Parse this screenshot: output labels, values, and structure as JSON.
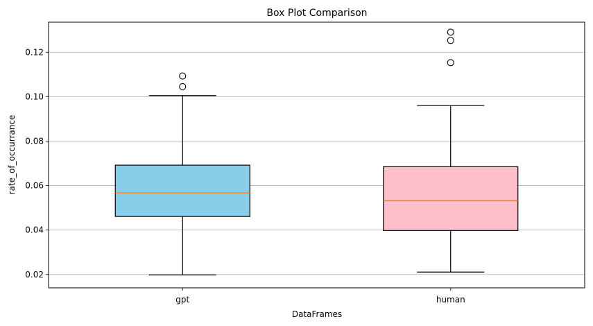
{
  "chart_data": {
    "type": "box",
    "title": "Box Plot Comparison",
    "xlabel": "DataFrames",
    "ylabel": "rate_of_occurrance",
    "ylim": [
      0.014,
      0.1335
    ],
    "yticks": [
      0.02,
      0.04,
      0.06,
      0.08,
      0.1,
      0.12
    ],
    "ytick_labels": [
      "0.02",
      "0.04",
      "0.06",
      "0.08",
      "0.10",
      "0.12"
    ],
    "grid": "y-major",
    "median_color": "#ff7f0e",
    "series": [
      {
        "name": "gpt",
        "color": "#87ceeb",
        "whisker_low": 0.0198,
        "q1": 0.0461,
        "median": 0.0567,
        "q3": 0.0692,
        "whisker_high": 0.1005,
        "outliers": [
          0.1045,
          0.1093
        ]
      },
      {
        "name": "human",
        "color": "#ffc0cb",
        "whisker_low": 0.0211,
        "q1": 0.0398,
        "median": 0.0532,
        "q3": 0.0685,
        "whisker_high": 0.096,
        "outliers": [
          0.1153,
          0.1253,
          0.129
        ]
      }
    ]
  }
}
